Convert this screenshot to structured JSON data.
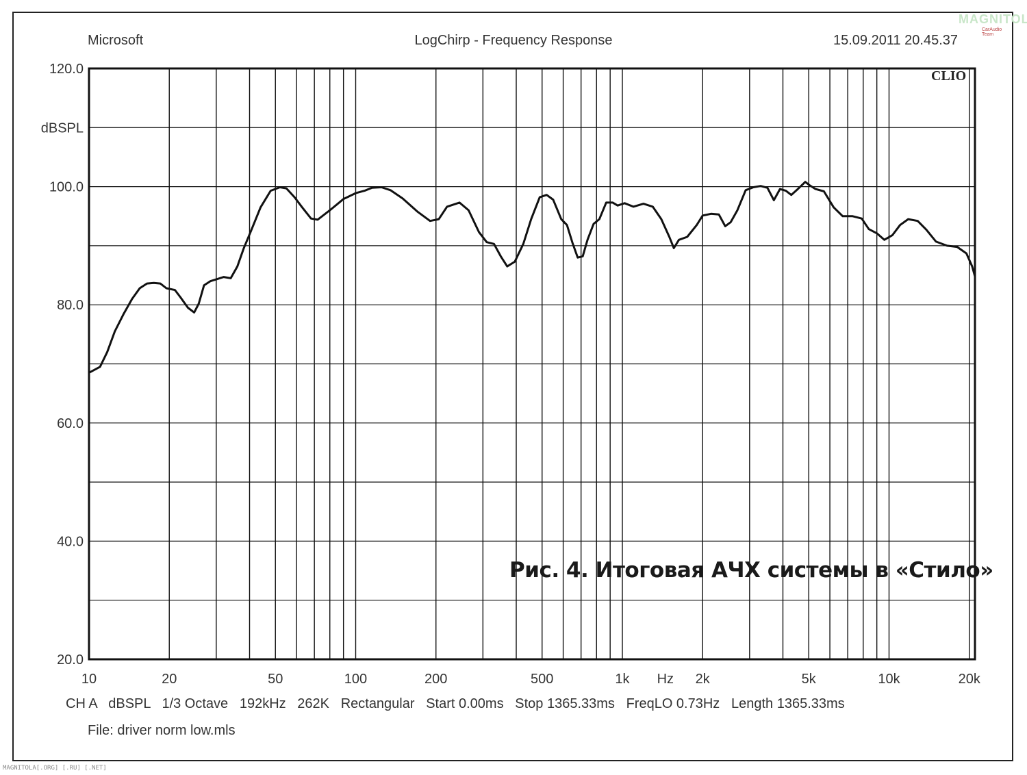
{
  "header": {
    "left": "Microsoft",
    "center": "LogChirp - Frequency Response",
    "right": "15.09.2011 20.45.37"
  },
  "brand_mark": "CLIO",
  "logo": {
    "main": "MAGNITOL",
    "sub": "CarAudio Team"
  },
  "caption": "Рис. 4. Итоговая АЧХ системы в «Стило»",
  "footer": {
    "line1": "CH A   dBSPL   1/3 Octave   192kHz   262K   Rectangular   Start 0.00ms   Stop 1365.33ms   FreqLO 0.73Hz   Length 1365.33ms",
    "line2": "File: driver norm low.mls"
  },
  "watermark": "MAGNITOLA[.ORG] [.RU] [.NET]",
  "chart_data": {
    "type": "line",
    "title": "LogChirp - Frequency Response",
    "xlabel": "Hz",
    "ylabel": "dBSPL",
    "xscale": "log",
    "xlim": [
      10,
      21000
    ],
    "ylim": [
      20,
      120
    ],
    "grid": true,
    "y_ticks": [
      {
        "value": 120,
        "label": "120.0"
      },
      {
        "value": 110,
        "label": "dBSPL"
      },
      {
        "value": 100,
        "label": "100.0"
      },
      {
        "value": 80,
        "label": "80.0"
      },
      {
        "value": 60,
        "label": "60.0"
      },
      {
        "value": 40,
        "label": "40.0"
      },
      {
        "value": 20,
        "label": "20.0"
      }
    ],
    "y_grid": [
      120,
      110,
      100,
      90,
      80,
      70,
      60,
      50,
      40,
      30,
      20
    ],
    "x_ticks": [
      {
        "value": 10,
        "label": "10"
      },
      {
        "value": 20,
        "label": "20"
      },
      {
        "value": 50,
        "label": "50"
      },
      {
        "value": 100,
        "label": "100"
      },
      {
        "value": 200,
        "label": "200"
      },
      {
        "value": 500,
        "label": "500"
      },
      {
        "value": 1000,
        "label": "1k"
      },
      {
        "value": 1450,
        "label": "Hz"
      },
      {
        "value": 2000,
        "label": "2k"
      },
      {
        "value": 5000,
        "label": "5k"
      },
      {
        "value": 10000,
        "label": "10k"
      },
      {
        "value": 20000,
        "label": "20k"
      }
    ],
    "x_grid": [
      10,
      20,
      30,
      40,
      50,
      60,
      70,
      80,
      90,
      100,
      200,
      300,
      400,
      500,
      600,
      700,
      800,
      900,
      1000,
      2000,
      3000,
      4000,
      5000,
      6000,
      7000,
      8000,
      9000,
      10000,
      20000
    ],
    "series": [
      {
        "points": [
          [
            10,
            68.5
          ],
          [
            11,
            69.5
          ],
          [
            11.7,
            72
          ],
          [
            12.5,
            75.5
          ],
          [
            13.5,
            78.5
          ],
          [
            14.5,
            81
          ],
          [
            15.5,
            82.8
          ],
          [
            16.5,
            83.6
          ],
          [
            17.5,
            83.7
          ],
          [
            18.5,
            83.6
          ],
          [
            19.5,
            82.8
          ],
          [
            21,
            82.5
          ],
          [
            22,
            81.3
          ],
          [
            23.5,
            79.5
          ],
          [
            24.8,
            78.7
          ],
          [
            25.8,
            80.2
          ],
          [
            27,
            83.3
          ],
          [
            28.5,
            84
          ],
          [
            30,
            84.3
          ],
          [
            32,
            84.7
          ],
          [
            34,
            84.5
          ],
          [
            36,
            86.5
          ],
          [
            38,
            89.5
          ],
          [
            40.5,
            92.5
          ],
          [
            44,
            96.5
          ],
          [
            48,
            99.3
          ],
          [
            52,
            99.9
          ],
          [
            55,
            99.7
          ],
          [
            59,
            98.2
          ],
          [
            63,
            96.5
          ],
          [
            68,
            94.6
          ],
          [
            72,
            94.4
          ],
          [
            80,
            96
          ],
          [
            90,
            97.9
          ],
          [
            100,
            98.9
          ],
          [
            108,
            99.3
          ],
          [
            115,
            99.8
          ],
          [
            125,
            99.9
          ],
          [
            135,
            99.4
          ],
          [
            150,
            98
          ],
          [
            170,
            95.8
          ],
          [
            190,
            94.2
          ],
          [
            205,
            94.5
          ],
          [
            220,
            96.6
          ],
          [
            245,
            97.3
          ],
          [
            265,
            96
          ],
          [
            290,
            92.3
          ],
          [
            310,
            90.6
          ],
          [
            330,
            90.3
          ],
          [
            350,
            88.2
          ],
          [
            370,
            86.5
          ],
          [
            395,
            87.3
          ],
          [
            425,
            90.3
          ],
          [
            455,
            94.5
          ],
          [
            490,
            98.2
          ],
          [
            520,
            98.6
          ],
          [
            550,
            97.8
          ],
          [
            590,
            94.5
          ],
          [
            620,
            93.5
          ],
          [
            650,
            90.5
          ],
          [
            680,
            88
          ],
          [
            710,
            88.2
          ],
          [
            740,
            91
          ],
          [
            780,
            93.7
          ],
          [
            820,
            94.5
          ],
          [
            870,
            97.3
          ],
          [
            920,
            97.3
          ],
          [
            960,
            96.8
          ],
          [
            1020,
            97.2
          ],
          [
            1100,
            96.6
          ],
          [
            1200,
            97.1
          ],
          [
            1300,
            96.6
          ],
          [
            1400,
            94.5
          ],
          [
            1500,
            91.5
          ],
          [
            1560,
            89.6
          ],
          [
            1630,
            91
          ],
          [
            1750,
            91.5
          ],
          [
            1900,
            93.5
          ],
          [
            2000,
            95.1
          ],
          [
            2150,
            95.4
          ],
          [
            2300,
            95.3
          ],
          [
            2430,
            93.3
          ],
          [
            2550,
            94
          ],
          [
            2700,
            96
          ],
          [
            2900,
            99.4
          ],
          [
            3100,
            99.9
          ],
          [
            3300,
            100.1
          ],
          [
            3500,
            99.8
          ],
          [
            3700,
            97.7
          ],
          [
            3900,
            99.6
          ],
          [
            4100,
            99.3
          ],
          [
            4300,
            98.6
          ],
          [
            4550,
            99.6
          ],
          [
            4850,
            100.8
          ],
          [
            5050,
            100.2
          ],
          [
            5300,
            99.6
          ],
          [
            5700,
            99.2
          ],
          [
            6200,
            96.5
          ],
          [
            6700,
            95
          ],
          [
            7300,
            95
          ],
          [
            7900,
            94.6
          ],
          [
            8400,
            92.8
          ],
          [
            9000,
            92.1
          ],
          [
            9600,
            91
          ],
          [
            10300,
            91.8
          ],
          [
            11000,
            93.5
          ],
          [
            11800,
            94.5
          ],
          [
            12800,
            94.2
          ],
          [
            13800,
            92.7
          ],
          [
            15000,
            90.7
          ],
          [
            16500,
            90
          ],
          [
            18000,
            89.8
          ],
          [
            19500,
            88.7
          ],
          [
            20500,
            86.5
          ],
          [
            21000,
            84.8
          ]
        ]
      }
    ]
  }
}
